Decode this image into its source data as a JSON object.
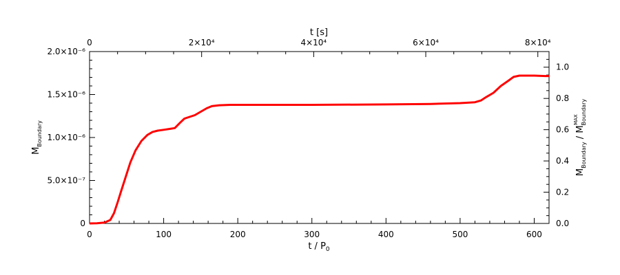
{
  "chart_data": {
    "type": "line",
    "bottom_axis": {
      "label": "t / P₀",
      "ticks": [
        0,
        100,
        200,
        300,
        400,
        500,
        600
      ],
      "range": [
        0,
        620
      ]
    },
    "top_axis": {
      "label": "t [s]",
      "ticks": [
        "0",
        "2×10⁴",
        "4×10⁴",
        "6×10⁴",
        "8×10⁴"
      ],
      "range_seconds": [
        0,
        82000
      ]
    },
    "left_axis": {
      "label": "M_Boundary",
      "tick_labels": [
        "0",
        "5.0×10⁻⁷",
        "1.0×10⁻⁶",
        "1.5×10⁻⁶",
        "2.0×10⁻⁶"
      ],
      "tick_values": [
        0,
        5e-07,
        1e-06,
        1.5e-06,
        2e-06
      ],
      "range": [
        0,
        2e-06
      ]
    },
    "right_axis": {
      "label": "M_Boundary / M_Boundary^MAX",
      "tick_labels": [
        "0.0",
        "0.2",
        "0.4",
        "0.6",
        "0.8",
        "1.0"
      ],
      "tick_values": [
        0,
        0.2,
        0.4,
        0.6,
        0.8,
        1.0
      ],
      "range": [
        0,
        1.1
      ]
    },
    "series": [
      {
        "color": "#ff0000",
        "x": [
          0,
          10,
          20,
          28,
          33,
          38,
          42,
          48,
          55,
          62,
          70,
          78,
          85,
          92,
          100,
          108,
          115,
          122,
          128,
          135,
          142,
          150,
          158,
          165,
          175,
          190,
          220,
          300,
          400,
          460,
          500,
          520,
          528,
          535,
          545,
          555,
          565,
          572,
          580,
          600,
          615,
          620
        ],
        "y": [
          0,
          2e-09,
          1e-08,
          4e-08,
          1.2e-07,
          2.5e-07,
          3.6e-07,
          5.2e-07,
          7.1e-07,
          8.5e-07,
          9.6e-07,
          1.03e-06,
          1.065e-06,
          1.08e-06,
          1.09e-06,
          1.1e-06,
          1.11e-06,
          1.17e-06,
          1.22e-06,
          1.24e-06,
          1.26e-06,
          1.3e-06,
          1.34e-06,
          1.365e-06,
          1.375e-06,
          1.38e-06,
          1.38e-06,
          1.38e-06,
          1.385e-06,
          1.39e-06,
          1.4e-06,
          1.41e-06,
          1.43e-06,
          1.47e-06,
          1.52e-06,
          1.6e-06,
          1.66e-06,
          1.705e-06,
          1.72e-06,
          1.72e-06,
          1.715e-06,
          1.715e-06
        ]
      }
    ]
  }
}
